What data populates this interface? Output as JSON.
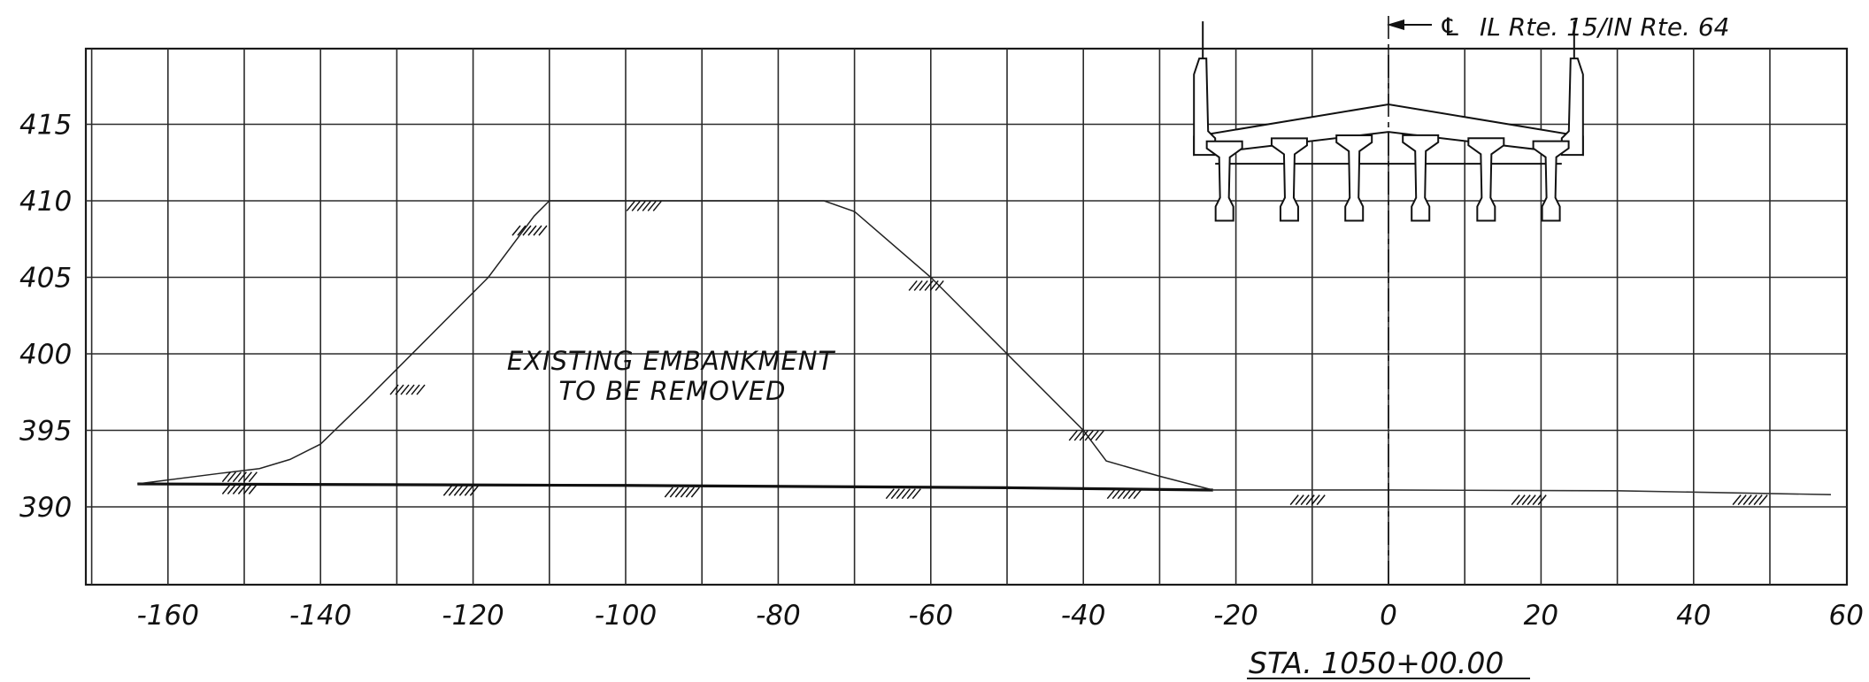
{
  "chart_data": {
    "type": "cross-section",
    "x_ticks": [
      -160,
      -140,
      -120,
      -100,
      -80,
      -60,
      -40,
      -20,
      0,
      20,
      40,
      60
    ],
    "y_ticks": [
      390,
      395,
      400,
      405,
      410,
      415
    ],
    "x_tick_labels": [
      "-160",
      "-140",
      "-120",
      "-100",
      "-80",
      "-60",
      "-40",
      "-20",
      "0",
      "20",
      "40",
      "60"
    ],
    "y_tick_labels": [
      "390",
      "395",
      "400",
      "405",
      "410",
      "415"
    ],
    "xlim": [
      -170,
      60
    ],
    "ylim": [
      385,
      420
    ],
    "grid": true,
    "existing_ground": {
      "x": [
        -164,
        -100,
        -50,
        -23,
        0,
        30,
        58
      ],
      "y": [
        391.5,
        391.4,
        391.25,
        391.1,
        391.1,
        391.05,
        390.8
      ]
    },
    "embankment": {
      "x": [
        -164,
        -153,
        -148,
        -144,
        -140,
        -134,
        -126,
        -118,
        -112,
        -110,
        -74,
        -70,
        -60,
        -50,
        -40,
        -37,
        -30,
        -23
      ],
      "y": [
        391.5,
        392.2,
        392.5,
        393.1,
        394.1,
        397.0,
        401.0,
        405.0,
        409.0,
        410.0,
        410.0,
        409.3,
        405.0,
        400.0,
        395.0,
        393.0,
        392.0,
        391.1
      ]
    },
    "hatch_marks": [
      {
        "x": -151,
        "y": 391.3
      },
      {
        "x": -122,
        "y": 391.2
      },
      {
        "x": -93,
        "y": 391.1
      },
      {
        "x": -64,
        "y": 391.0
      },
      {
        "x": -35,
        "y": 391.0
      },
      {
        "x": -11,
        "y": 390.6
      },
      {
        "x": 18,
        "y": 390.6
      },
      {
        "x": 47,
        "y": 390.6
      },
      {
        "x": -151,
        "y": 392.1
      },
      {
        "x": -129,
        "y": 397.8
      },
      {
        "x": -113,
        "y": 408.2
      },
      {
        "x": -98,
        "y": 409.8
      },
      {
        "x": -61,
        "y": 404.6
      },
      {
        "x": -40,
        "y": 394.8
      }
    ],
    "bridge": {
      "deck_edges_x": [
        -25.5,
        25.5
      ],
      "deck_top_y": [
        414.2,
        416.3
      ],
      "deck_bottom_y": [
        413.0,
        414.5
      ],
      "girder_x": [
        -21.5,
        -13,
        -4.5,
        4.2,
        12.8,
        21.3
      ],
      "girder_bottom_y": 408.7,
      "railing_top_y": 419.3
    }
  },
  "annotations": {
    "note_line1": "EXISTING EMBANKMENT",
    "note_line2": "TO BE REMOVED",
    "station": "STA. 1050+00.00",
    "centerline_symbol": "℄",
    "centerline_label": "IL Rte. 15/IN Rte. 64"
  }
}
